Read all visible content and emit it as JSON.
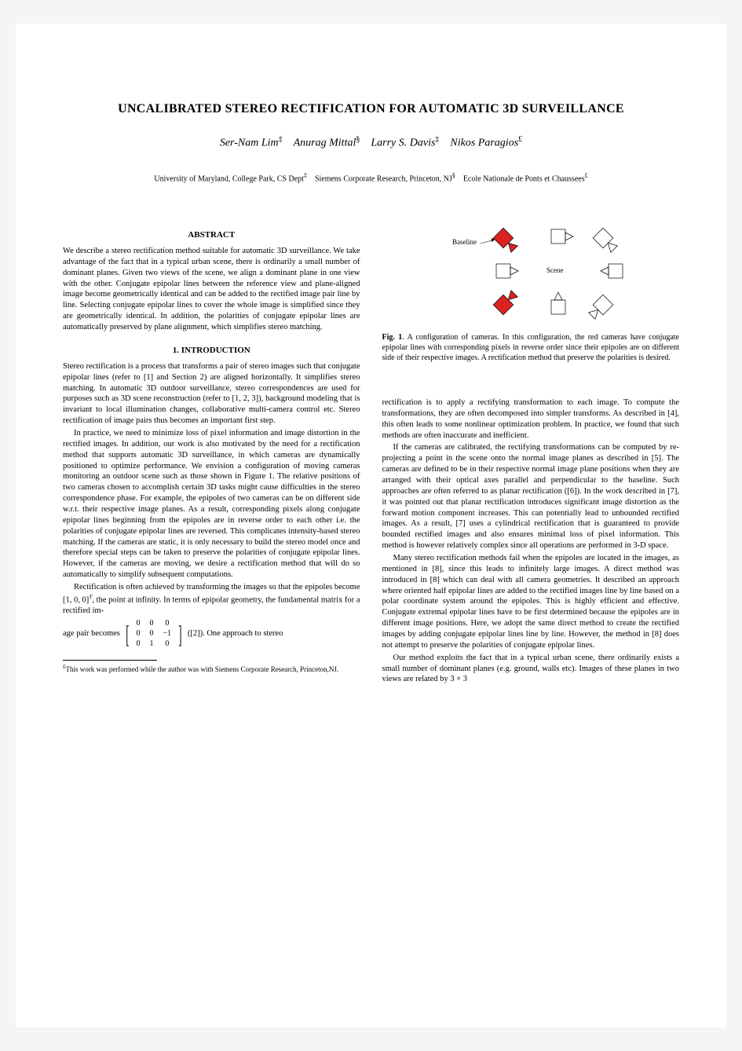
{
  "title": "UNCALIBRATED STEREO RECTIFICATION FOR AUTOMATIC 3D SURVEILLANCE",
  "authors_html": "Ser-Nam Lim<sup>‡</sup>&nbsp;&nbsp;&nbsp;&nbsp;Anurag Mittal<sup>§</sup>&nbsp;&nbsp;&nbsp;&nbsp;Larry S. Davis<sup>‡</sup>&nbsp;&nbsp;&nbsp;&nbsp;Nikos Paragios<sup>£</sup>",
  "affiliations_html": "University of Maryland, College Park, CS Dept<sup>‡</sup>&nbsp;&nbsp;&nbsp;&nbsp;Siemens Corporate Research, Princeton, NJ<sup>§</sup>&nbsp;&nbsp;&nbsp;&nbsp;Ecole Nationale de Ponts et Chaussees<sup>£</sup>",
  "abstract_heading": "ABSTRACT",
  "abstract_text": "We describe a stereo rectification method suitable for automatic 3D surveillance. We take advantage of the fact that in a typical urban scene, there is ordinarily a small number of dominant planes. Given two views of the scene, we align a dominant plane in one view with the other. Conjugate epipolar lines between the reference view and plane-aligned image become geometrically identical and can be added to the rectified image pair line by line. Selecting conjugate epipolar lines to cover the whole image is simplified since they are geometrically identical. In addition, the polarities of conjugate epipolar lines are automatically preserved by plane alignment, which simplifies stereo matching.",
  "intro_heading": "1. INTRODUCTION",
  "intro_p1": "Stereo rectification is a process that transforms a pair of stereo images such that conjugate epipolar lines (refer to [1] and Section 2) are aligned horizontally. It simplifies stereo matching. In automatic 3D outdoor surveillance, stereo correspondences are used for purposes such as 3D scene reconstruction (refer to [1, 2, 3]), background modeling that is invariant to local illumination changes, collaborative multi-camera control etc. Stereo rectification of image pairs thus becomes an important first step.",
  "intro_p2": "In practice, we need to minimize loss of pixel information and image distortion in the rectified images. In addition, our work is also motivated by the need for a rectification method that supports automatic 3D surveillance, in which cameras are dynamically positioned to optimize performance. We envision a configuration of moving cameras monitoring an outdoor scene such as those shown in Figure 1. The relative positions of two cameras chosen to accomplish certain 3D tasks might cause difficulties in the stereo correspondence phase. For example, the epipoles of two cameras can be on different side w.r.t. their respective image planes. As a result, corresponding pixels along conjugate epipolar lines beginning from the epipoles are in reverse order to each other i.e. the polarities of conjugate epipolar lines are reversed. This complicates intensity-based stereo matching. If the cameras are static, it is only necessary to build the stereo model once and therefore special steps can be taken to preserve the polarities of conjugate epipolar lines. However, if the cameras are moving, we desire a rectification method that will do so automatically to simplify subsequent computations.",
  "intro_p3_html": "Rectification is often achieved by transforming the images so that the epipoles become [1, 0, 0]<sup><i>T</i></sup>, the point at infinity. In terms of epipolar geometry, the fundamental matrix for a rectified im-",
  "matrix_prefix": "age pair becomes",
  "matrix_rows": [
    [
      "0",
      "0",
      "0"
    ],
    [
      "0",
      "0",
      "−1"
    ],
    [
      "0",
      "1",
      "0"
    ]
  ],
  "matrix_suffix": "([2]). One approach to stereo",
  "footnote_html": "<sup>£</sup>This work was performed while the author was with Siemens Corporate Research, Princeton,NJ.",
  "fig1": {
    "label_baseline": "Baseline",
    "label_scene": "Scene",
    "caption_html": "<b>Fig. 1</b>. A configuration of cameras. In this configuration, the red cameras have conjugate epipolar lines with corresponding pixels in reverse order since their epipoles are on different side of their respective images. A rectification method that preserve the polarities is desired.",
    "red": "#d22",
    "stroke": "#000"
  },
  "col2_p1": "rectification is to apply a rectifying transformation to each image. To compute the transformations, they are often decomposed into simpler transforms. As described in [4], this often leads to some nonlinear optimization problem. In practice, we found that such methods are often inaccurate and inefficient.",
  "col2_p2": "If the cameras are calibrated, the rectifying transformations can be computed by re-projecting a point in the scene onto the normal image planes as described in [5]. The cameras are defined to be in their respective normal image plane positions when they are arranged with their optical axes parallel and perpendicular to the baseline. Such approaches are often referred to as planar rectification ([6]). In the work described in [7], it was pointed out that planar rectification introduces significant image distortion as the forward motion component increases. This can potentially lead to unbounded rectified images. As a result, [7] uses a cylindrical rectification that is guaranteed to provide bounded rectified images and also ensures minimal loss of pixel information. This method is however relatively complex since all operations are performed in 3-D space.",
  "col2_p3": "Many stereo rectification methods fail when the epipoles are located in the images, as mentioned in [8], since this leads to infinitely large images. A direct method was introduced in [8] which can deal with all camera geometries. It described an approach where oriented half epipolar lines are added to the rectified images line by line based on a polar coordinate system around the epipoles. This is highly efficient and effective. Conjugate extremal epipolar lines have to be first determined because the epipoles are in different image positions. Here, we adopt the same direct method to create the rectified images by adding conjugate epipolar lines line by line. However, the method in [8] does not attempt to preserve the polarities of conjugate epipolar lines.",
  "col2_p4": "Our method exploits the fact that in a typical urban scene, there ordinarily exists a small number of dominant planes (e.g. ground, walls etc). Images of these planes in two views are related by 3 × 3"
}
